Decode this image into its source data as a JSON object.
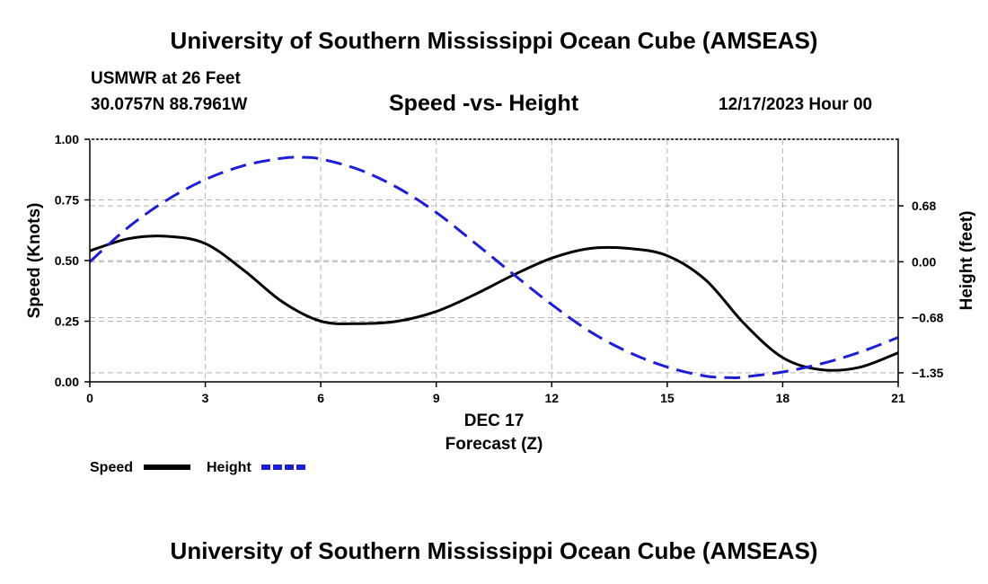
{
  "header": {
    "title": "University of Southern Mississippi Ocean Cube (AMSEAS)",
    "station": "USMWR at 26 Feet",
    "coords": "30.0757N  88.7961W",
    "subtitle": "Speed -vs- Height",
    "datetime": "12/17/2023 Hour 00"
  },
  "footer": {
    "title": "University of Southern Mississippi Ocean Cube (AMSEAS)"
  },
  "chart_data": {
    "type": "line",
    "title": "Speed -vs- Height",
    "xlabel": "Forecast (Z)",
    "xdate": "DEC 17",
    "ylabel": "Speed (Knots)",
    "y2label": "Height (feet)",
    "xlim": [
      0,
      21
    ],
    "ylim": [
      0,
      1
    ],
    "y2lim": [
      -1.46,
      1.49
    ],
    "x_ticks": [
      0,
      3,
      6,
      9,
      12,
      15,
      18,
      21
    ],
    "x_tick_labels": [
      "0",
      "3",
      "6",
      "9",
      "12",
      "15",
      "18",
      "21"
    ],
    "y_ticks": [
      0,
      0.25,
      0.5,
      0.75,
      1
    ],
    "y_tick_labels": [
      "0.00",
      "0.25",
      "0.50",
      "0.75",
      "1.00"
    ],
    "y2_ticks": [
      0.68,
      0,
      -0.68,
      -1.35
    ],
    "y2_tick_labels": [
      "0.68",
      "0.00",
      "−0.68",
      "−1.35"
    ],
    "grid": true,
    "legend_position": "bottom-left",
    "series": [
      {
        "name": "Speed",
        "axis": "left",
        "color": "#000000",
        "style": "solid",
        "x": [
          0,
          1,
          2,
          3,
          4,
          5,
          6,
          7,
          8,
          9,
          10,
          11,
          12,
          13,
          14,
          15,
          16,
          17,
          18,
          19,
          20,
          21
        ],
        "values": [
          0.54,
          0.59,
          0.6,
          0.57,
          0.46,
          0.33,
          0.25,
          0.24,
          0.25,
          0.29,
          0.36,
          0.44,
          0.51,
          0.55,
          0.55,
          0.52,
          0.42,
          0.24,
          0.1,
          0.05,
          0.06,
          0.12
        ]
      },
      {
        "name": "Height",
        "axis": "right",
        "color": "#1e1ed2",
        "style": "dashed",
        "x": [
          0,
          1,
          2,
          3,
          4,
          5,
          5.5,
          6,
          7,
          8,
          9,
          10,
          11,
          12,
          13,
          14,
          15,
          16,
          16.7,
          17,
          18,
          19,
          20,
          21
        ],
        "values": [
          0.0,
          0.42,
          0.75,
          1.0,
          1.17,
          1.26,
          1.27,
          1.25,
          1.12,
          0.9,
          0.6,
          0.23,
          -0.15,
          -0.52,
          -0.85,
          -1.1,
          -1.28,
          -1.39,
          -1.41,
          -1.4,
          -1.34,
          -1.24,
          -1.1,
          -0.92
        ]
      }
    ]
  }
}
